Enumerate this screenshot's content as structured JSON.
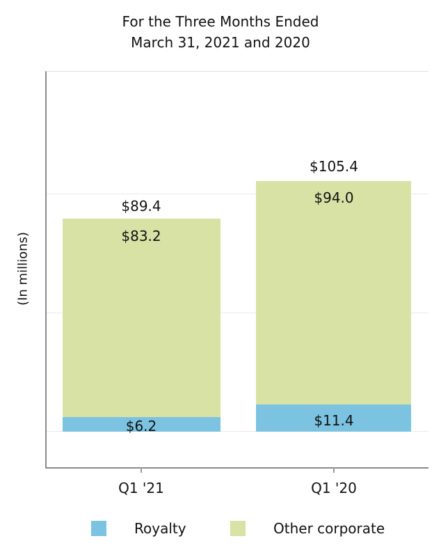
{
  "header": {
    "title_line1": "For the Three Months Ended",
    "title_line2": "March 31, 2021 and 2020"
  },
  "y_axis": {
    "label": "(In millions)"
  },
  "x_axis": {
    "tick_labels": [
      "Q1 '21",
      "Q1 '20"
    ]
  },
  "legend": {
    "items": [
      {
        "label": "Royalty",
        "color": "#7cc3e1"
      },
      {
        "label": "Other corporate",
        "color": "#d8e2a5"
      }
    ]
  },
  "chart_data": {
    "type": "bar",
    "stacked": true,
    "title": "For the Three Months Ended March 31, 2021 and 2020",
    "ylabel": "(In millions)",
    "categories": [
      "Q1 '21",
      "Q1 '20"
    ],
    "series": [
      {
        "name": "Royalty",
        "color": "#7cc3e1",
        "values": [
          6.2,
          11.4
        ]
      },
      {
        "name": "Other corporate",
        "color": "#d8e2a5",
        "values": [
          83.2,
          94.0
        ]
      }
    ],
    "totals": [
      89.4,
      105.4
    ],
    "total_labels": [
      "$89.4",
      "$105.4"
    ],
    "segment_labels": [
      [
        "$6.2",
        "$83.2"
      ],
      [
        "$11.4",
        "$94.0"
      ]
    ],
    "gridline_values": [
      0,
      50,
      100
    ],
    "ylim": [
      -15,
      152
    ],
    "grid": true,
    "legend_position": "bottom"
  }
}
